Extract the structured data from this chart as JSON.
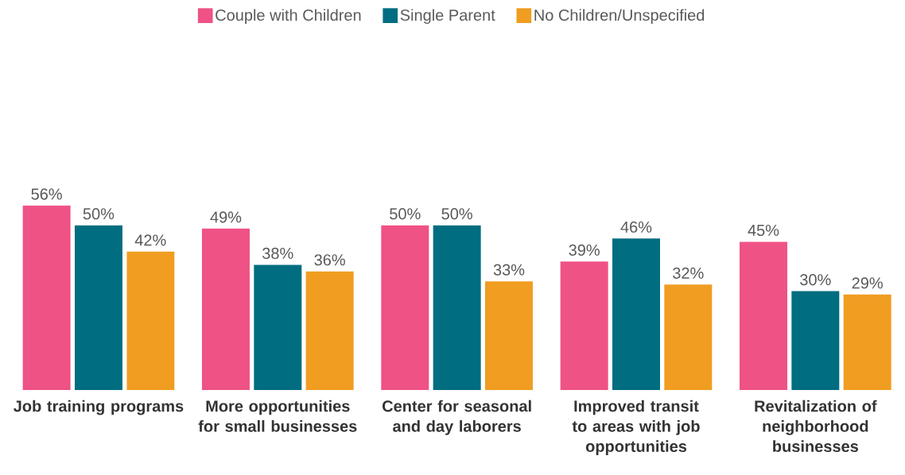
{
  "chart_data": {
    "type": "bar",
    "categories": [
      "Job training programs",
      "More opportunities for small businesses",
      "Center for seasonal and day laborers",
      "Improved transit to areas with job opportunities",
      "Revitalization of neighborhood businesses"
    ],
    "series": [
      {
        "name": "Couple with Children",
        "color": "#ef5285",
        "values": [
          56,
          49,
          50,
          39,
          45
        ],
        "value_labels": [
          "56%",
          "49%",
          "50%",
          "39%",
          "45%"
        ]
      },
      {
        "name": "Single Parent",
        "color": "#006d80",
        "values": [
          50,
          38,
          50,
          46,
          30
        ],
        "value_labels": [
          "50%",
          "38%",
          "50%",
          "46%",
          "30%"
        ]
      },
      {
        "name": "No Children/Unspecified",
        "color": "#f09d21",
        "values": [
          42,
          36,
          33,
          32,
          29
        ],
        "value_labels": [
          "42%",
          "36%",
          "33%",
          "32%",
          "29%"
        ]
      }
    ],
    "legend": "top"
  }
}
